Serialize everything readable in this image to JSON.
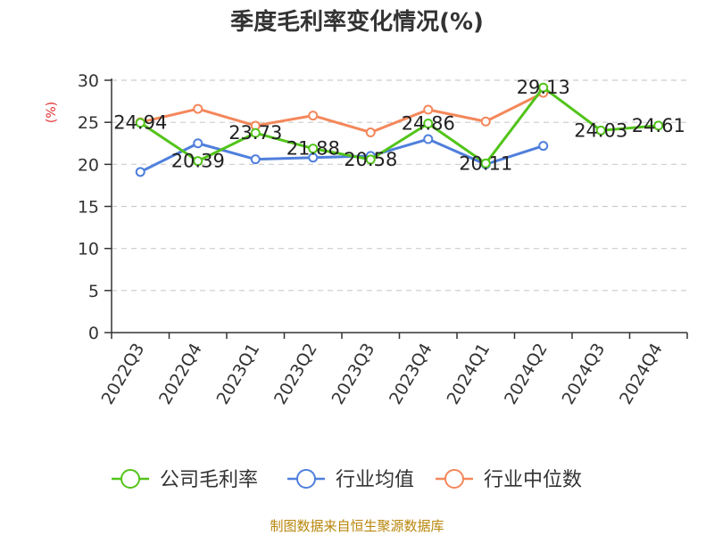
{
  "chart_data": {
    "type": "line",
    "title": "季度毛利率变化情况(%)",
    "ylabel": "(%)",
    "ylim": [
      0,
      30
    ],
    "yticks": [
      0,
      5,
      10,
      15,
      20,
      25,
      30
    ],
    "grid": true,
    "legend_position": "bottom",
    "categories": [
      "2022Q3",
      "2022Q4",
      "2023Q1",
      "2023Q2",
      "2023Q3",
      "2023Q4",
      "2024Q1",
      "2024Q2",
      "2024Q3",
      "2024Q4"
    ],
    "series": [
      {
        "name": "公司毛利率",
        "color": "#52c41a",
        "values": [
          24.94,
          20.39,
          23.73,
          21.88,
          20.58,
          24.86,
          20.11,
          29.13,
          24.03,
          24.61
        ],
        "labels": [
          "24.94",
          "20.39",
          "23.73",
          "21.88",
          "20.58",
          "24.86",
          "20.11",
          "29.13",
          "24.03",
          "24.61"
        ]
      },
      {
        "name": "行业均值",
        "color": "#4f7fdc",
        "values": [
          19.1,
          22.5,
          20.6,
          20.8,
          21.0,
          23.0,
          20.0,
          22.2,
          null,
          null
        ]
      },
      {
        "name": "行业中位数",
        "color": "#f4875a",
        "values": [
          25.0,
          26.6,
          24.6,
          25.8,
          23.8,
          26.5,
          25.1,
          28.5,
          null,
          null
        ]
      }
    ]
  },
  "source_text": "制图数据来自恒生聚源数据库"
}
